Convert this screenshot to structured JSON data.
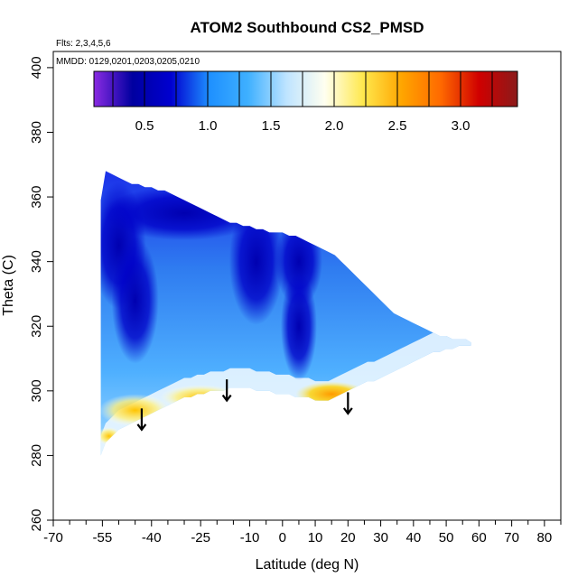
{
  "chart_data": {
    "type": "heatmap",
    "title": "ATOM2 Southbound CS2_PMSD",
    "subtitle_flights": "Flts: 2,3,4,5,6",
    "subtitle_dates": "MMDD: 0129,0201,0203,0205,0210",
    "xlabel": "Latitude (deg N)",
    "ylabel": "Theta (C)",
    "xlim": [
      -70,
      85
    ],
    "ylim": [
      260,
      405
    ],
    "x_ticks": [
      -70,
      -55,
      -40,
      -25,
      -10,
      0,
      10,
      20,
      30,
      40,
      50,
      60,
      70,
      80
    ],
    "x_tick_labels": [
      "-70",
      "-55",
      "-40",
      "-25",
      "-10",
      "0",
      "10",
      "20",
      "30",
      "40",
      "50",
      "60",
      "70",
      "80"
    ],
    "x_minor_ticks": [
      -65,
      -60,
      -50,
      -45,
      -35,
      -30,
      -20,
      -15,
      -5,
      5,
      15,
      25,
      35,
      45,
      55,
      65,
      75,
      85
    ],
    "y_ticks": [
      260,
      280,
      300,
      320,
      340,
      360,
      380,
      400
    ],
    "y_tick_labels": [
      "260",
      "280",
      "300",
      "320",
      "340",
      "360",
      "380",
      "400"
    ],
    "colorbar": {
      "range": [
        0.1,
        3.45
      ],
      "ticks": [
        0.5,
        1.0,
        1.5,
        2.0,
        2.5,
        3.0
      ],
      "tick_labels": [
        "0.5",
        "1.0",
        "1.5",
        "2.0",
        "2.5",
        "3.0"
      ],
      "colors": [
        "#8a2be2",
        "#0000a0",
        "#0000d0",
        "#1e90ff",
        "#3fb0ff",
        "#bfe4ff",
        "#fffff0",
        "#ffe84d",
        "#ffa500",
        "#ff6a00",
        "#d00000",
        "#8b1a1a"
      ]
    },
    "arrows": [
      {
        "lat": -43,
        "theta": 294
      },
      {
        "lat": -17,
        "theta": 303
      },
      {
        "lat": 20,
        "theta": 299
      }
    ],
    "data_region_outline": {
      "lat": [
        -55.5,
        -54,
        -52,
        -50,
        -48,
        -46,
        -44,
        -42,
        -40,
        -38,
        -36,
        -34,
        -32,
        -30,
        -28,
        -26,
        -24,
        -22,
        -20,
        -18,
        -16,
        -14,
        -12,
        -10,
        -8,
        -6,
        -4,
        -2,
        0,
        2,
        4,
        6,
        8,
        10,
        12,
        14,
        16,
        18,
        20,
        22,
        24,
        26,
        28,
        30,
        32,
        34,
        36,
        38,
        40,
        42,
        44,
        46,
        48,
        50,
        52,
        54,
        56,
        57.5
      ],
      "theta_top": [
        359,
        368,
        367,
        366,
        365,
        364,
        364,
        363,
        363,
        362,
        362,
        361,
        360,
        359,
        358,
        357,
        356,
        355,
        354,
        353,
        352,
        352,
        351,
        351,
        350,
        350,
        349,
        349,
        349,
        348,
        348,
        347,
        346,
        345,
        344,
        343,
        342,
        340,
        338,
        336,
        334,
        332,
        330,
        328,
        326,
        324,
        323,
        322,
        321,
        320,
        319,
        318,
        317,
        317,
        316,
        316,
        316,
        315
      ],
      "theta_bottom": [
        280,
        284,
        286,
        288,
        289,
        290,
        291,
        292,
        293,
        294,
        295,
        296,
        297,
        298,
        298,
        299,
        299,
        300,
        300,
        300,
        301,
        301,
        301,
        301,
        300,
        300,
        300,
        299,
        299,
        299,
        298,
        298,
        298,
        297,
        297,
        297,
        298,
        299,
        300,
        301,
        302,
        303,
        303,
        304,
        305,
        306,
        307,
        308,
        309,
        310,
        311,
        312,
        312,
        313,
        313,
        314,
        314,
        314
      ]
    },
    "low_value_features": [
      {
        "lat": -50,
        "theta": 345,
        "value": 0.4
      },
      {
        "lat": -45,
        "theta": 328,
        "value": 0.3
      },
      {
        "lat": -8,
        "theta": 340,
        "value": 0.2
      },
      {
        "lat": 5,
        "theta": 340,
        "value": 0.5
      },
      {
        "lat": 5,
        "theta": 320,
        "value": 0.5
      },
      {
        "lat": -30,
        "theta": 355,
        "value": 0.6
      }
    ],
    "high_value_features": [
      {
        "lat": -45,
        "theta": 294,
        "value": 2.1
      },
      {
        "lat": -25,
        "theta": 298,
        "value": 2.2
      },
      {
        "lat": 15,
        "theta": 299,
        "value": 2.6
      },
      {
        "lat": -53,
        "theta": 286,
        "value": 2.3
      }
    ]
  }
}
